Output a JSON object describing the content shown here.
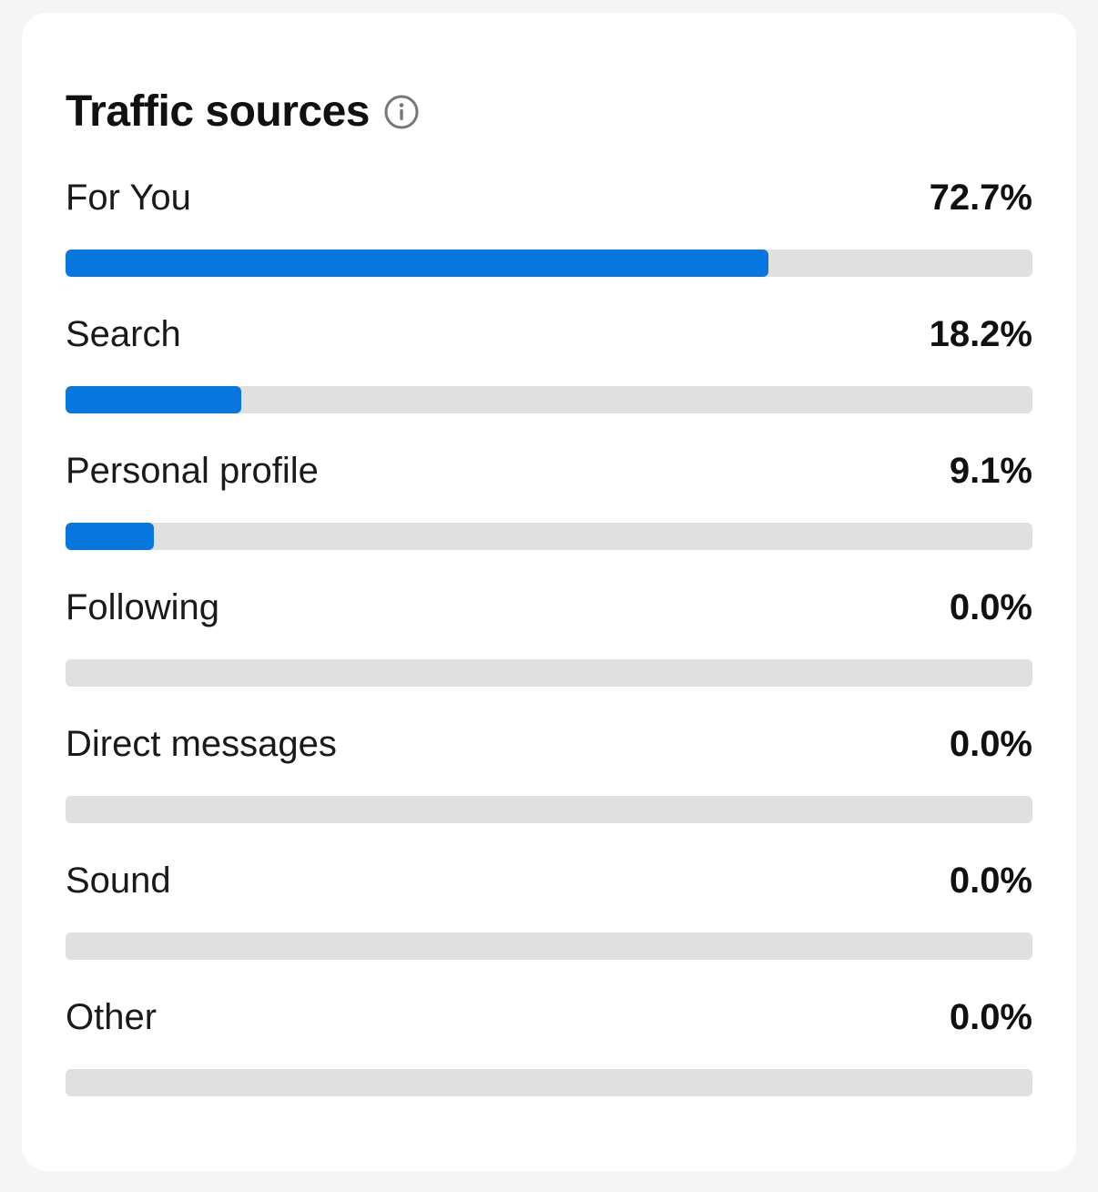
{
  "card": {
    "title": "Traffic sources",
    "info_icon": "info-circle-icon"
  },
  "colors": {
    "bar_fill": "#0776df",
    "bar_track": "#e0e0e0"
  },
  "chart_data": {
    "type": "bar",
    "orientation": "horizontal",
    "title": "Traffic sources",
    "xlim": [
      0,
      100
    ],
    "categories": [
      "For You",
      "Search",
      "Personal profile",
      "Following",
      "Direct messages",
      "Sound",
      "Other"
    ],
    "values": [
      72.7,
      18.2,
      9.1,
      0.0,
      0.0,
      0.0,
      0.0
    ],
    "value_labels": [
      "72.7%",
      "18.2%",
      "9.1%",
      "0.0%",
      "0.0%",
      "0.0%",
      "0.0%"
    ],
    "grid": false,
    "legend": "none"
  }
}
